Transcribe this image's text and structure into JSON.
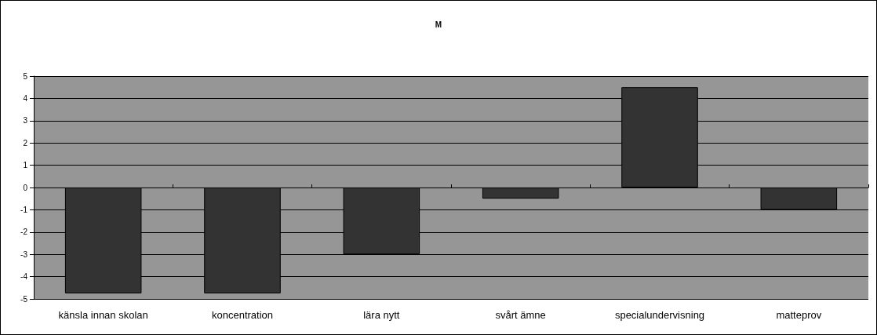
{
  "chart_data": {
    "type": "bar",
    "title": "M",
    "categories": [
      "känsla innan skolan",
      "koncentration",
      "lära nytt",
      "svårt ämne",
      "specialundervisning",
      "matteprov"
    ],
    "values": [
      -4.75,
      -4.75,
      -3,
      -0.5,
      4.5,
      -1
    ],
    "color": "#333333",
    "ylim": [
      -5,
      5
    ],
    "yticks": [
      -5,
      -4,
      -3,
      -2,
      -1,
      0,
      1,
      2,
      3,
      4,
      5
    ],
    "grid": "y"
  }
}
